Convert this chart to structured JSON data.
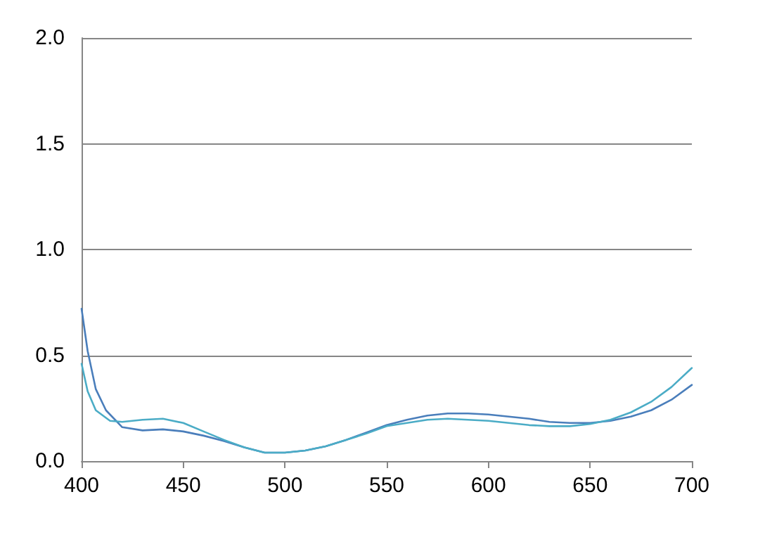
{
  "chart_data": {
    "type": "line",
    "grid": "y",
    "marker": "none",
    "line_style": "solid",
    "xlim": [
      400,
      700
    ],
    "xticks": [
      400,
      450,
      500,
      550,
      600,
      650,
      700
    ],
    "ylim": [
      0,
      2
    ],
    "yticks": [
      {
        "value": 0,
        "label": "0.0"
      },
      {
        "value": 0.5,
        "label": "0.5"
      },
      {
        "value": 1,
        "label": "1.0"
      },
      {
        "value": 1.5,
        "label": "1.5"
      },
      {
        "value": 2,
        "label": "2.0"
      }
    ],
    "series": [
      {
        "color": "#4a7ebb",
        "x": [
          400,
          403,
          407,
          412,
          420,
          430,
          440,
          450,
          460,
          470,
          480,
          490,
          500,
          510,
          520,
          530,
          540,
          550,
          560,
          570,
          580,
          590,
          600,
          610,
          620,
          630,
          640,
          650,
          660,
          670,
          680,
          690,
          700
        ],
        "values": [
          0.72,
          0.52,
          0.34,
          0.24,
          0.16,
          0.145,
          0.15,
          0.14,
          0.12,
          0.095,
          0.065,
          0.04,
          0.04,
          0.05,
          0.07,
          0.1,
          0.135,
          0.17,
          0.195,
          0.215,
          0.225,
          0.225,
          0.22,
          0.21,
          0.2,
          0.185,
          0.18,
          0.18,
          0.19,
          0.21,
          0.24,
          0.29,
          0.36
        ]
      },
      {
        "color": "#4bacc6",
        "x": [
          400,
          403,
          407,
          414,
          420,
          430,
          440,
          450,
          460,
          470,
          480,
          490,
          500,
          510,
          520,
          530,
          540,
          550,
          560,
          570,
          580,
          590,
          600,
          610,
          620,
          630,
          640,
          650,
          660,
          670,
          680,
          690,
          700
        ],
        "values": [
          0.46,
          0.33,
          0.24,
          0.19,
          0.185,
          0.195,
          0.2,
          0.18,
          0.14,
          0.1,
          0.065,
          0.04,
          0.04,
          0.05,
          0.07,
          0.1,
          0.13,
          0.165,
          0.18,
          0.195,
          0.2,
          0.195,
          0.19,
          0.18,
          0.17,
          0.165,
          0.165,
          0.175,
          0.195,
          0.23,
          0.28,
          0.35,
          0.44
        ]
      }
    ]
  }
}
